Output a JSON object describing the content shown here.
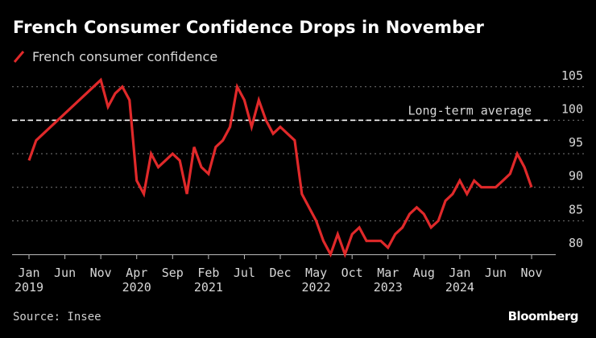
{
  "title": "French Consumer Confidence Drops in November",
  "legend": {
    "label": "French consumer confidence"
  },
  "source": "Source: Insee",
  "logo": "Bloomberg",
  "colors": {
    "background": "#000000",
    "series": "#e0292a",
    "grid": "#777777",
    "average": "#ffffff",
    "text": "#d8d8d8"
  },
  "chart_data": {
    "type": "line",
    "title": "French Consumer Confidence Drops in November",
    "xlabel": "",
    "ylabel": "",
    "ylim": [
      80,
      105
    ],
    "yticks": [
      80,
      85,
      90,
      95,
      100,
      105
    ],
    "y_axis_side": "right",
    "grid": true,
    "legend_placement": "top-left",
    "xticks": [
      {
        "date": "2019-01",
        "month": "Jan",
        "year": "2019"
      },
      {
        "date": "2019-06",
        "month": "Jun",
        "year": ""
      },
      {
        "date": "2019-11",
        "month": "Nov",
        "year": ""
      },
      {
        "date": "2020-04",
        "month": "Apr",
        "year": "2020"
      },
      {
        "date": "2020-09",
        "month": "Sep",
        "year": ""
      },
      {
        "date": "2021-02",
        "month": "Feb",
        "year": "2021"
      },
      {
        "date": "2021-07",
        "month": "Jul",
        "year": ""
      },
      {
        "date": "2021-12",
        "month": "Dec",
        "year": ""
      },
      {
        "date": "2022-05",
        "month": "May",
        "year": "2022"
      },
      {
        "date": "2022-10",
        "month": "Oct",
        "year": ""
      },
      {
        "date": "2023-03",
        "month": "Mar",
        "year": "2023"
      },
      {
        "date": "2023-08",
        "month": "Aug",
        "year": ""
      },
      {
        "date": "2024-01",
        "month": "Jan",
        "year": "2024"
      },
      {
        "date": "2024-06",
        "month": "Jun",
        "year": ""
      },
      {
        "date": "2024-11",
        "month": "Nov",
        "year": ""
      }
    ],
    "reference_line": {
      "label": "Long-term average",
      "value": 100
    },
    "series": [
      {
        "name": "French consumer confidence",
        "x": [
          "2019-01",
          "2019-02",
          "2019-11",
          "2019-12",
          "2020-01",
          "2020-02",
          "2020-03",
          "2020-04",
          "2020-05",
          "2020-06",
          "2020-07",
          "2020-08",
          "2020-09",
          "2020-10",
          "2020-11",
          "2020-12",
          "2021-01",
          "2021-02",
          "2021-03",
          "2021-04",
          "2021-05",
          "2021-06",
          "2021-07",
          "2021-08",
          "2021-09",
          "2021-10",
          "2021-11",
          "2021-12",
          "2022-01",
          "2022-02",
          "2022-03",
          "2022-04",
          "2022-05",
          "2022-06",
          "2022-07",
          "2022-08",
          "2022-09",
          "2022-10",
          "2022-11",
          "2022-12",
          "2023-01",
          "2023-02",
          "2023-03",
          "2023-04",
          "2023-05",
          "2023-06",
          "2023-07",
          "2023-08",
          "2023-09",
          "2023-10",
          "2023-11",
          "2023-12",
          "2024-01",
          "2024-02",
          "2024-03",
          "2024-04",
          "2024-05",
          "2024-06",
          "2024-07",
          "2024-08",
          "2024-09",
          "2024-10",
          "2024-11"
        ],
        "values": [
          94,
          97,
          106,
          102,
          104,
          105,
          103,
          91,
          89,
          95,
          93,
          94,
          95,
          94,
          89,
          96,
          93,
          92,
          96,
          97,
          99,
          105,
          103,
          99,
          103,
          100,
          98,
          99,
          98,
          97,
          89,
          87,
          85,
          82,
          80,
          83,
          80,
          83,
          84,
          82,
          82,
          82,
          81,
          83,
          84,
          86,
          87,
          86,
          84,
          85,
          88,
          89,
          91,
          89,
          91,
          90,
          90,
          90,
          91,
          92,
          95,
          93,
          90
        ]
      }
    ]
  }
}
